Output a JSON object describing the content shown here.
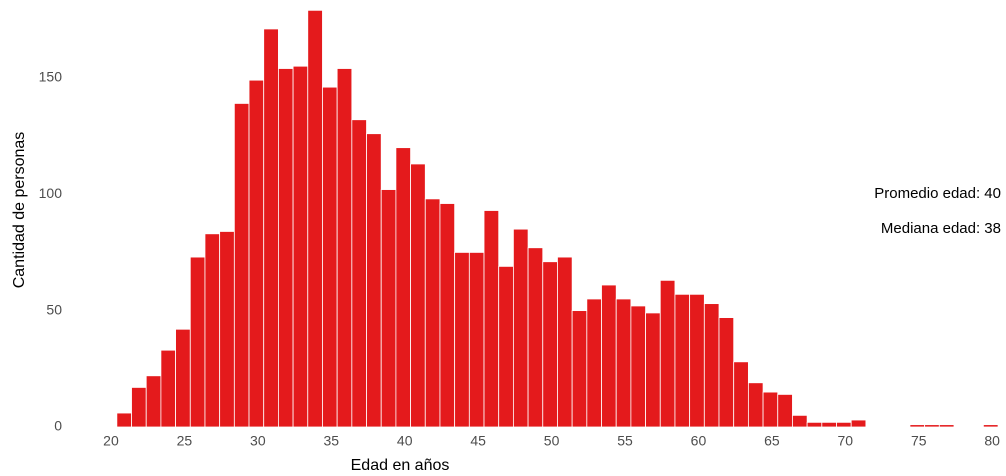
{
  "chart_data": {
    "type": "histogram",
    "xlabel": "Edad en años",
    "ylabel": "Cantidad de personas",
    "annotations": [
      "Promedio edad: 40",
      "Mediana edad: 38"
    ],
    "bins": [
      20.4,
      21.4,
      22.4,
      23.4,
      24.4,
      25.4,
      26.4,
      27.4,
      28.4,
      29.4,
      30.4,
      31.4,
      32.4,
      33.4,
      34.4,
      35.4,
      36.4,
      37.4,
      38.4,
      39.4,
      40.4,
      41.4,
      42.4,
      43.4,
      44.4,
      45.4,
      46.4,
      47.4,
      48.4,
      49.4,
      50.4,
      51.4,
      52.4,
      53.4,
      54.4,
      55.4,
      56.4,
      57.4,
      58.4,
      59.4,
      60.4,
      61.4,
      62.4,
      63.4,
      64.4,
      65.4,
      66.4,
      67.4,
      68.4,
      69.4,
      70.4,
      71.4,
      72.4,
      73.4,
      74.4,
      75.4,
      76.4,
      77.4,
      78.4,
      79.4,
      80.4
    ],
    "values": [
      6,
      17,
      22,
      33,
      42,
      73,
      83,
      84,
      139,
      149,
      171,
      154,
      155,
      179,
      146,
      154,
      132,
      126,
      102,
      120,
      113,
      98,
      96,
      75,
      75,
      93,
      69,
      85,
      77,
      71,
      73,
      50,
      55,
      61,
      55,
      52,
      49,
      63,
      57,
      57,
      53,
      47,
      28,
      19,
      15,
      14,
      5,
      2,
      2,
      2,
      3,
      0,
      0,
      0,
      1,
      1,
      1,
      0,
      0,
      1
    ],
    "color": "#e41a1c",
    "xlim": [
      18,
      80.6
    ],
    "xticks": [
      20,
      25,
      30,
      35,
      40,
      45,
      50,
      55,
      60,
      65,
      70,
      75,
      80
    ],
    "ylim": [
      0,
      180
    ],
    "yticks": [
      0,
      50,
      100,
      150
    ],
    "grid": false
  }
}
